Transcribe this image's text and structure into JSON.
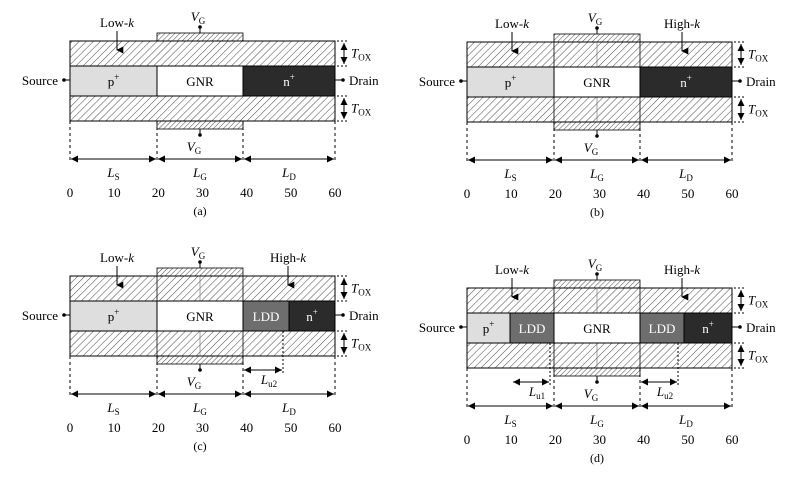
{
  "panels": [
    {
      "id": "a",
      "caption": "(a)",
      "gate_label": "V",
      "gate_sub": "G",
      "top_dielectric": "Low-",
      "top_dielectric_italic": "k",
      "source_label": "Source",
      "drain_label": "Drain",
      "regions": [
        "p",
        "GNR",
        "n"
      ],
      "region_sup": [
        "+",
        "",
        "+"
      ],
      "tox_label": "T",
      "tox_sub": "OX",
      "len_labels": [
        {
          "t": "L",
          "s": "S"
        },
        {
          "t": "L",
          "s": "G"
        },
        {
          "t": "L",
          "s": "D"
        }
      ],
      "ticks": [
        "0",
        "10",
        "20",
        "30",
        "40",
        "50",
        "60"
      ]
    },
    {
      "id": "b",
      "caption": "(b)",
      "gate_label": "V",
      "gate_sub": "G",
      "left_dielectric": "Low-",
      "right_dielectric": "High-",
      "dielectric_italic": "k",
      "source_label": "Source",
      "drain_label": "Drain",
      "regions": [
        "p",
        "GNR",
        "n"
      ],
      "region_sup": [
        "+",
        "",
        "+"
      ],
      "tox_label": "T",
      "tox_sub": "OX",
      "len_labels": [
        {
          "t": "L",
          "s": "S"
        },
        {
          "t": "L",
          "s": "G"
        },
        {
          "t": "L",
          "s": "D"
        }
      ],
      "ticks": [
        "0",
        "10",
        "20",
        "30",
        "40",
        "50",
        "60"
      ]
    },
    {
      "id": "c",
      "caption": "(c)",
      "gate_label": "V",
      "gate_sub": "G",
      "left_dielectric": "Low-",
      "right_dielectric": "High-",
      "dielectric_italic": "k",
      "source_label": "Source",
      "drain_label": "Drain",
      "regions": [
        "p",
        "GNR",
        "LDD",
        "n"
      ],
      "region_sup": [
        "+",
        "",
        "",
        "+"
      ],
      "tox_label": "T",
      "tox_sub": "OX",
      "lu_labels": [
        {
          "t": "L",
          "s": "u2"
        }
      ],
      "len_labels": [
        {
          "t": "L",
          "s": "S"
        },
        {
          "t": "L",
          "s": "G"
        },
        {
          "t": "L",
          "s": "D"
        }
      ],
      "ticks": [
        "0",
        "10",
        "20",
        "30",
        "40",
        "50",
        "60"
      ]
    },
    {
      "id": "d",
      "caption": "(d)",
      "gate_label": "V",
      "gate_sub": "G",
      "left_dielectric": "Low-",
      "right_dielectric": "High-",
      "dielectric_italic": "k",
      "source_label": "Source",
      "drain_label": "Drain",
      "regions": [
        "p",
        "LDD",
        "GNR",
        "LDD",
        "n"
      ],
      "region_sup": [
        "+",
        "",
        "",
        "",
        "+"
      ],
      "tox_label": "T",
      "tox_sub": "OX",
      "lu_labels": [
        {
          "t": "L",
          "s": "u1"
        },
        {
          "t": "L",
          "s": "u2"
        }
      ],
      "len_labels": [
        {
          "t": "L",
          "s": "S"
        },
        {
          "t": "L",
          "s": "G"
        },
        {
          "t": "L",
          "s": "D"
        }
      ],
      "ticks": [
        "0",
        "10",
        "20",
        "30",
        "40",
        "50",
        "60"
      ]
    }
  ],
  "colors": {
    "p_plus": "#dedede",
    "ldd": "#6e6e6e",
    "n_plus": "#2b2b2b",
    "gnr": "#ffffff",
    "hatch": "#555555"
  }
}
